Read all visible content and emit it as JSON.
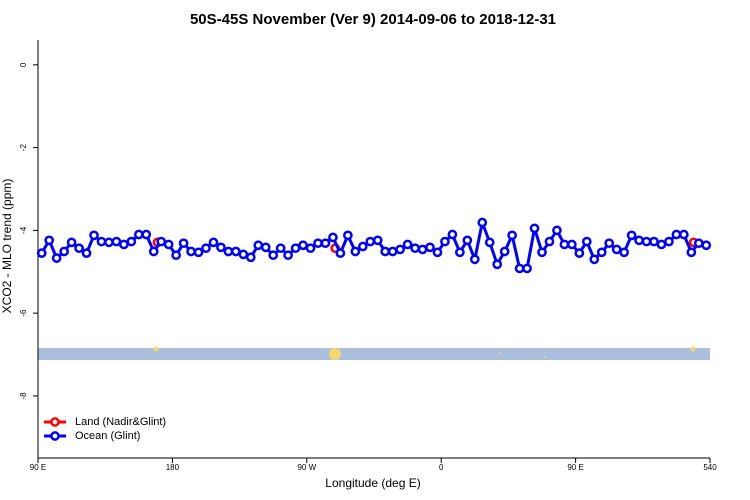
{
  "chart_data": {
    "type": "line",
    "title": "50S-45S November (Ver 9)   2014-09-06 to 2018-12-31",
    "x_label": "Longitude (deg E)",
    "y_label": "XCO2 - MLO trend (ppm)",
    "xlim": [
      90,
      540
    ],
    "ylim": [
      -9.5,
      0.6
    ],
    "xticks": [
      {
        "value": 90,
        "label": "90 E"
      },
      180,
      {
        "value": 270,
        "label": "90 W"
      },
      {
        "value": 360,
        "label": "0"
      },
      {
        "value": 450,
        "label": "90 E"
      },
      540
    ],
    "yticks": [
      0,
      -2,
      -4,
      -6,
      -8
    ],
    "legend": "bottomleft",
    "series": [
      {
        "name": "Land (Nadir&Glint)",
        "color": "#ff0000",
        "line": false,
        "x": [
          170,
          289,
          529
        ],
        "values": [
          -4.29,
          -4.43,
          -4.29
        ]
      },
      {
        "name": "Ocean (Glint)",
        "color": "#0000ff",
        "line": true,
        "x": [
          92.5,
          97.5,
          102.5,
          107.5,
          112.5,
          117.5,
          122.5,
          127.5,
          132.5,
          137.5,
          142.5,
          147.5,
          152.5,
          157.5,
          162.5,
          167.5,
          172.5,
          177.5,
          182.5,
          187.5,
          192.5,
          197.5,
          202.5,
          207.5,
          212.5,
          217.5,
          222.5,
          227.5,
          232.5,
          237.5,
          242.5,
          247.5,
          252.5,
          257.5,
          262.5,
          267.5,
          272.5,
          277.5,
          282.5,
          287.5,
          292.5,
          297.5,
          302.5,
          307.5,
          312.5,
          317.5,
          322.5,
          327.5,
          332.5,
          337.5,
          342.5,
          347.5,
          352.5,
          357.5,
          362.5,
          367.5,
          372.5,
          377.5,
          382.5,
          387.5,
          392.5,
          397.5,
          402.5,
          407.5,
          412.5,
          417.5,
          422.5,
          427.5,
          432.5,
          437.5,
          442.5,
          447.5,
          452.5,
          457.5,
          462.5,
          467.5,
          472.5,
          477.5,
          482.5,
          487.5,
          492.5,
          497.5,
          502.5,
          507.5,
          512.5,
          517.5,
          522.5,
          527.5,
          532.5,
          537.5
        ],
        "values": [
          -4.55,
          -4.24,
          -4.67,
          -4.51,
          -4.29,
          -4.43,
          -4.55,
          -4.12,
          -4.27,
          -4.29,
          -4.27,
          -4.34,
          -4.27,
          -4.1,
          -4.1,
          -4.51,
          -4.27,
          -4.34,
          -4.6,
          -4.31,
          -4.51,
          -4.53,
          -4.43,
          -4.29,
          -4.41,
          -4.51,
          -4.51,
          -4.58,
          -4.65,
          -4.36,
          -4.41,
          -4.6,
          -4.43,
          -4.6,
          -4.43,
          -4.36,
          -4.43,
          -4.31,
          -4.31,
          -4.17,
          -4.55,
          -4.12,
          -4.51,
          -4.39,
          -4.27,
          -4.24,
          -4.51,
          -4.51,
          -4.46,
          -4.34,
          -4.43,
          -4.46,
          -4.41,
          -4.53,
          -4.27,
          -4.1,
          -4.53,
          -4.24,
          -4.7,
          -3.81,
          -4.29,
          -4.82,
          -4.51,
          -4.12,
          -4.92,
          -4.92,
          -3.95,
          -4.53,
          -4.27,
          -4.0,
          -4.34,
          -4.34,
          -4.55,
          -4.27,
          -4.7,
          -4.53,
          -4.31,
          -4.46,
          -4.53,
          -4.12,
          -4.24,
          -4.27,
          -4.27,
          -4.34,
          -4.27,
          -4.1,
          -4.1,
          -4.53,
          -4.31,
          -4.36
        ]
      }
    ]
  }
}
